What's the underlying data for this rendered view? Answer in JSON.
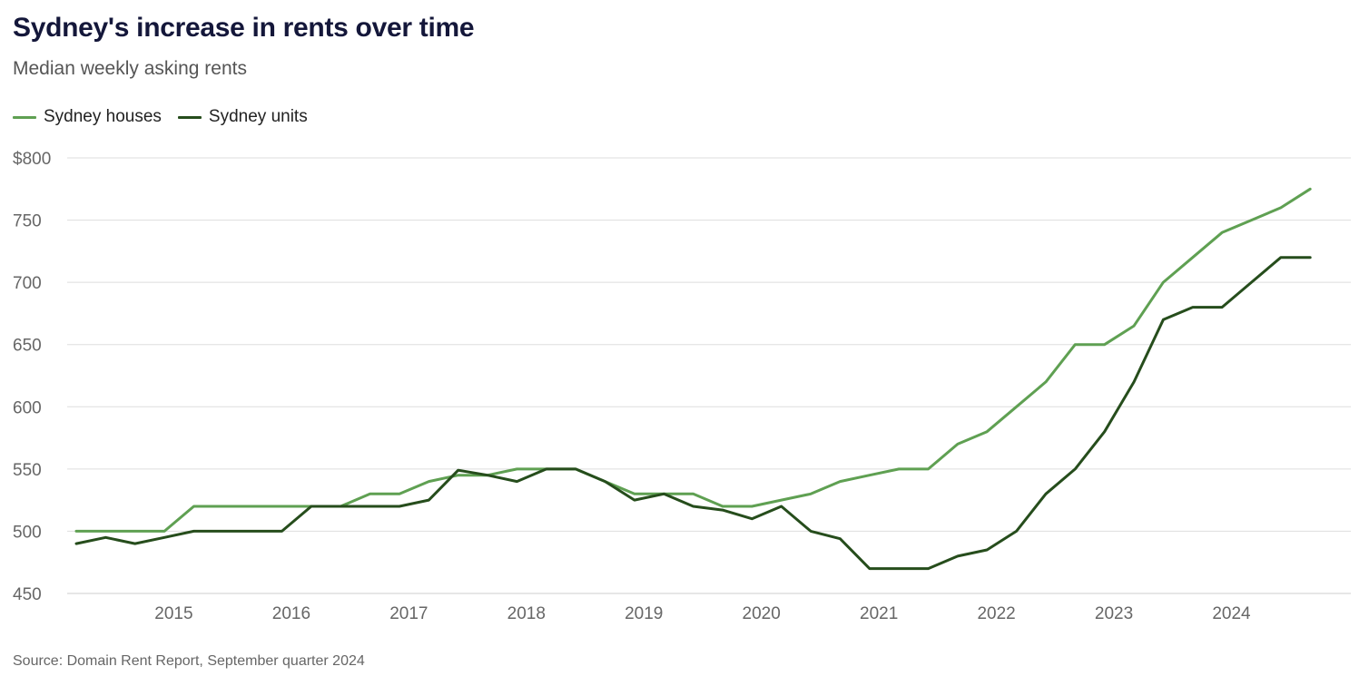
{
  "title": "Sydney's increase in rents over time",
  "subtitle": "Median weekly asking rents",
  "source": "Source: Domain Rent Report, September quarter 2024",
  "colors": {
    "houses": "#5fa052",
    "units": "#264d1c",
    "grid": "#dddddd"
  },
  "chart_data": {
    "type": "line",
    "y_tick_labels": [
      "$800",
      "750",
      "700",
      "650",
      "600",
      "550",
      "500",
      "450"
    ],
    "y_ticks": [
      800,
      750,
      700,
      650,
      600,
      550,
      500,
      450
    ],
    "x_tick_labels": [
      "2015",
      "2016",
      "2017",
      "2018",
      "2019",
      "2020",
      "2021",
      "2022",
      "2023",
      "2024"
    ],
    "x_ticks": [
      2015,
      2016,
      2017,
      2018,
      2019,
      2020,
      2021,
      2022,
      2023,
      2024
    ],
    "xlim": [
      2014.17,
      2024.9
    ],
    "ylim": [
      450,
      800
    ],
    "grid": true,
    "legend": "top-left",
    "x": [
      2014.17,
      2014.42,
      2014.67,
      2014.92,
      2015.17,
      2015.42,
      2015.67,
      2015.92,
      2016.17,
      2016.42,
      2016.67,
      2016.92,
      2017.17,
      2017.42,
      2017.67,
      2017.92,
      2018.17,
      2018.42,
      2018.67,
      2018.92,
      2019.17,
      2019.42,
      2019.67,
      2019.92,
      2020.17,
      2020.42,
      2020.67,
      2020.92,
      2021.17,
      2021.42,
      2021.67,
      2021.92,
      2022.17,
      2022.42,
      2022.67,
      2022.92,
      2023.17,
      2023.42,
      2023.67,
      2023.92,
      2024.17,
      2024.42,
      2024.67
    ],
    "series": [
      {
        "name": "Sydney houses",
        "color_key": "houses",
        "values": [
          500,
          500,
          500,
          500,
          520,
          520,
          520,
          520,
          520,
          520,
          530,
          530,
          540,
          545,
          545,
          550,
          550,
          550,
          540,
          530,
          530,
          530,
          520,
          520,
          525,
          530,
          540,
          545,
          550,
          550,
          570,
          580,
          600,
          620,
          650,
          650,
          665,
          700,
          720,
          740,
          750,
          760,
          775
        ]
      },
      {
        "name": "Sydney units",
        "color_key": "units",
        "values": [
          490,
          495,
          490,
          495,
          500,
          500,
          500,
          500,
          520,
          520,
          520,
          520,
          525,
          549,
          545,
          540,
          550,
          550,
          540,
          525,
          530,
          520,
          517,
          510,
          520,
          500,
          494,
          470,
          470,
          470,
          480,
          485,
          500,
          530,
          550,
          580,
          620,
          670,
          680,
          680,
          700,
          720,
          720
        ]
      }
    ]
  }
}
